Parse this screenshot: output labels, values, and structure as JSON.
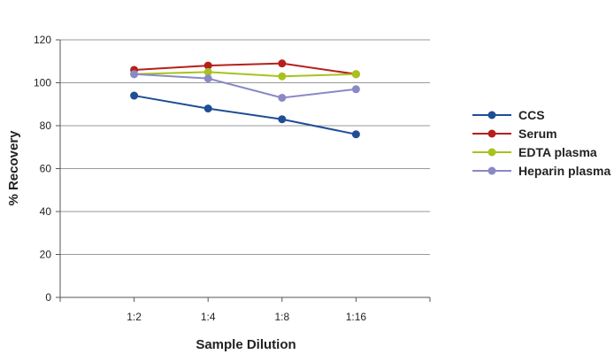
{
  "chart_data": {
    "type": "line",
    "title": "",
    "xlabel": "Sample Dilution",
    "ylabel": "% Recovery",
    "categories": [
      "1:2",
      "1:4",
      "1:8",
      "1:16"
    ],
    "ylim": [
      0,
      120
    ],
    "yticks": [
      0,
      20,
      40,
      60,
      80,
      100,
      120
    ],
    "grid": true,
    "legend_position": "right",
    "series": [
      {
        "name": "CCS",
        "color": "#1f4e96",
        "values": [
          94,
          88,
          83,
          76
        ]
      },
      {
        "name": "Serum",
        "color": "#b5201c",
        "values": [
          106,
          108,
          109,
          104
        ]
      },
      {
        "name": "EDTA plasma",
        "color": "#a8c21d",
        "values": [
          104,
          105,
          103,
          104
        ]
      },
      {
        "name": "Heparin plasma",
        "color": "#8a89c6",
        "values": [
          104,
          102,
          93,
          97
        ]
      }
    ]
  }
}
